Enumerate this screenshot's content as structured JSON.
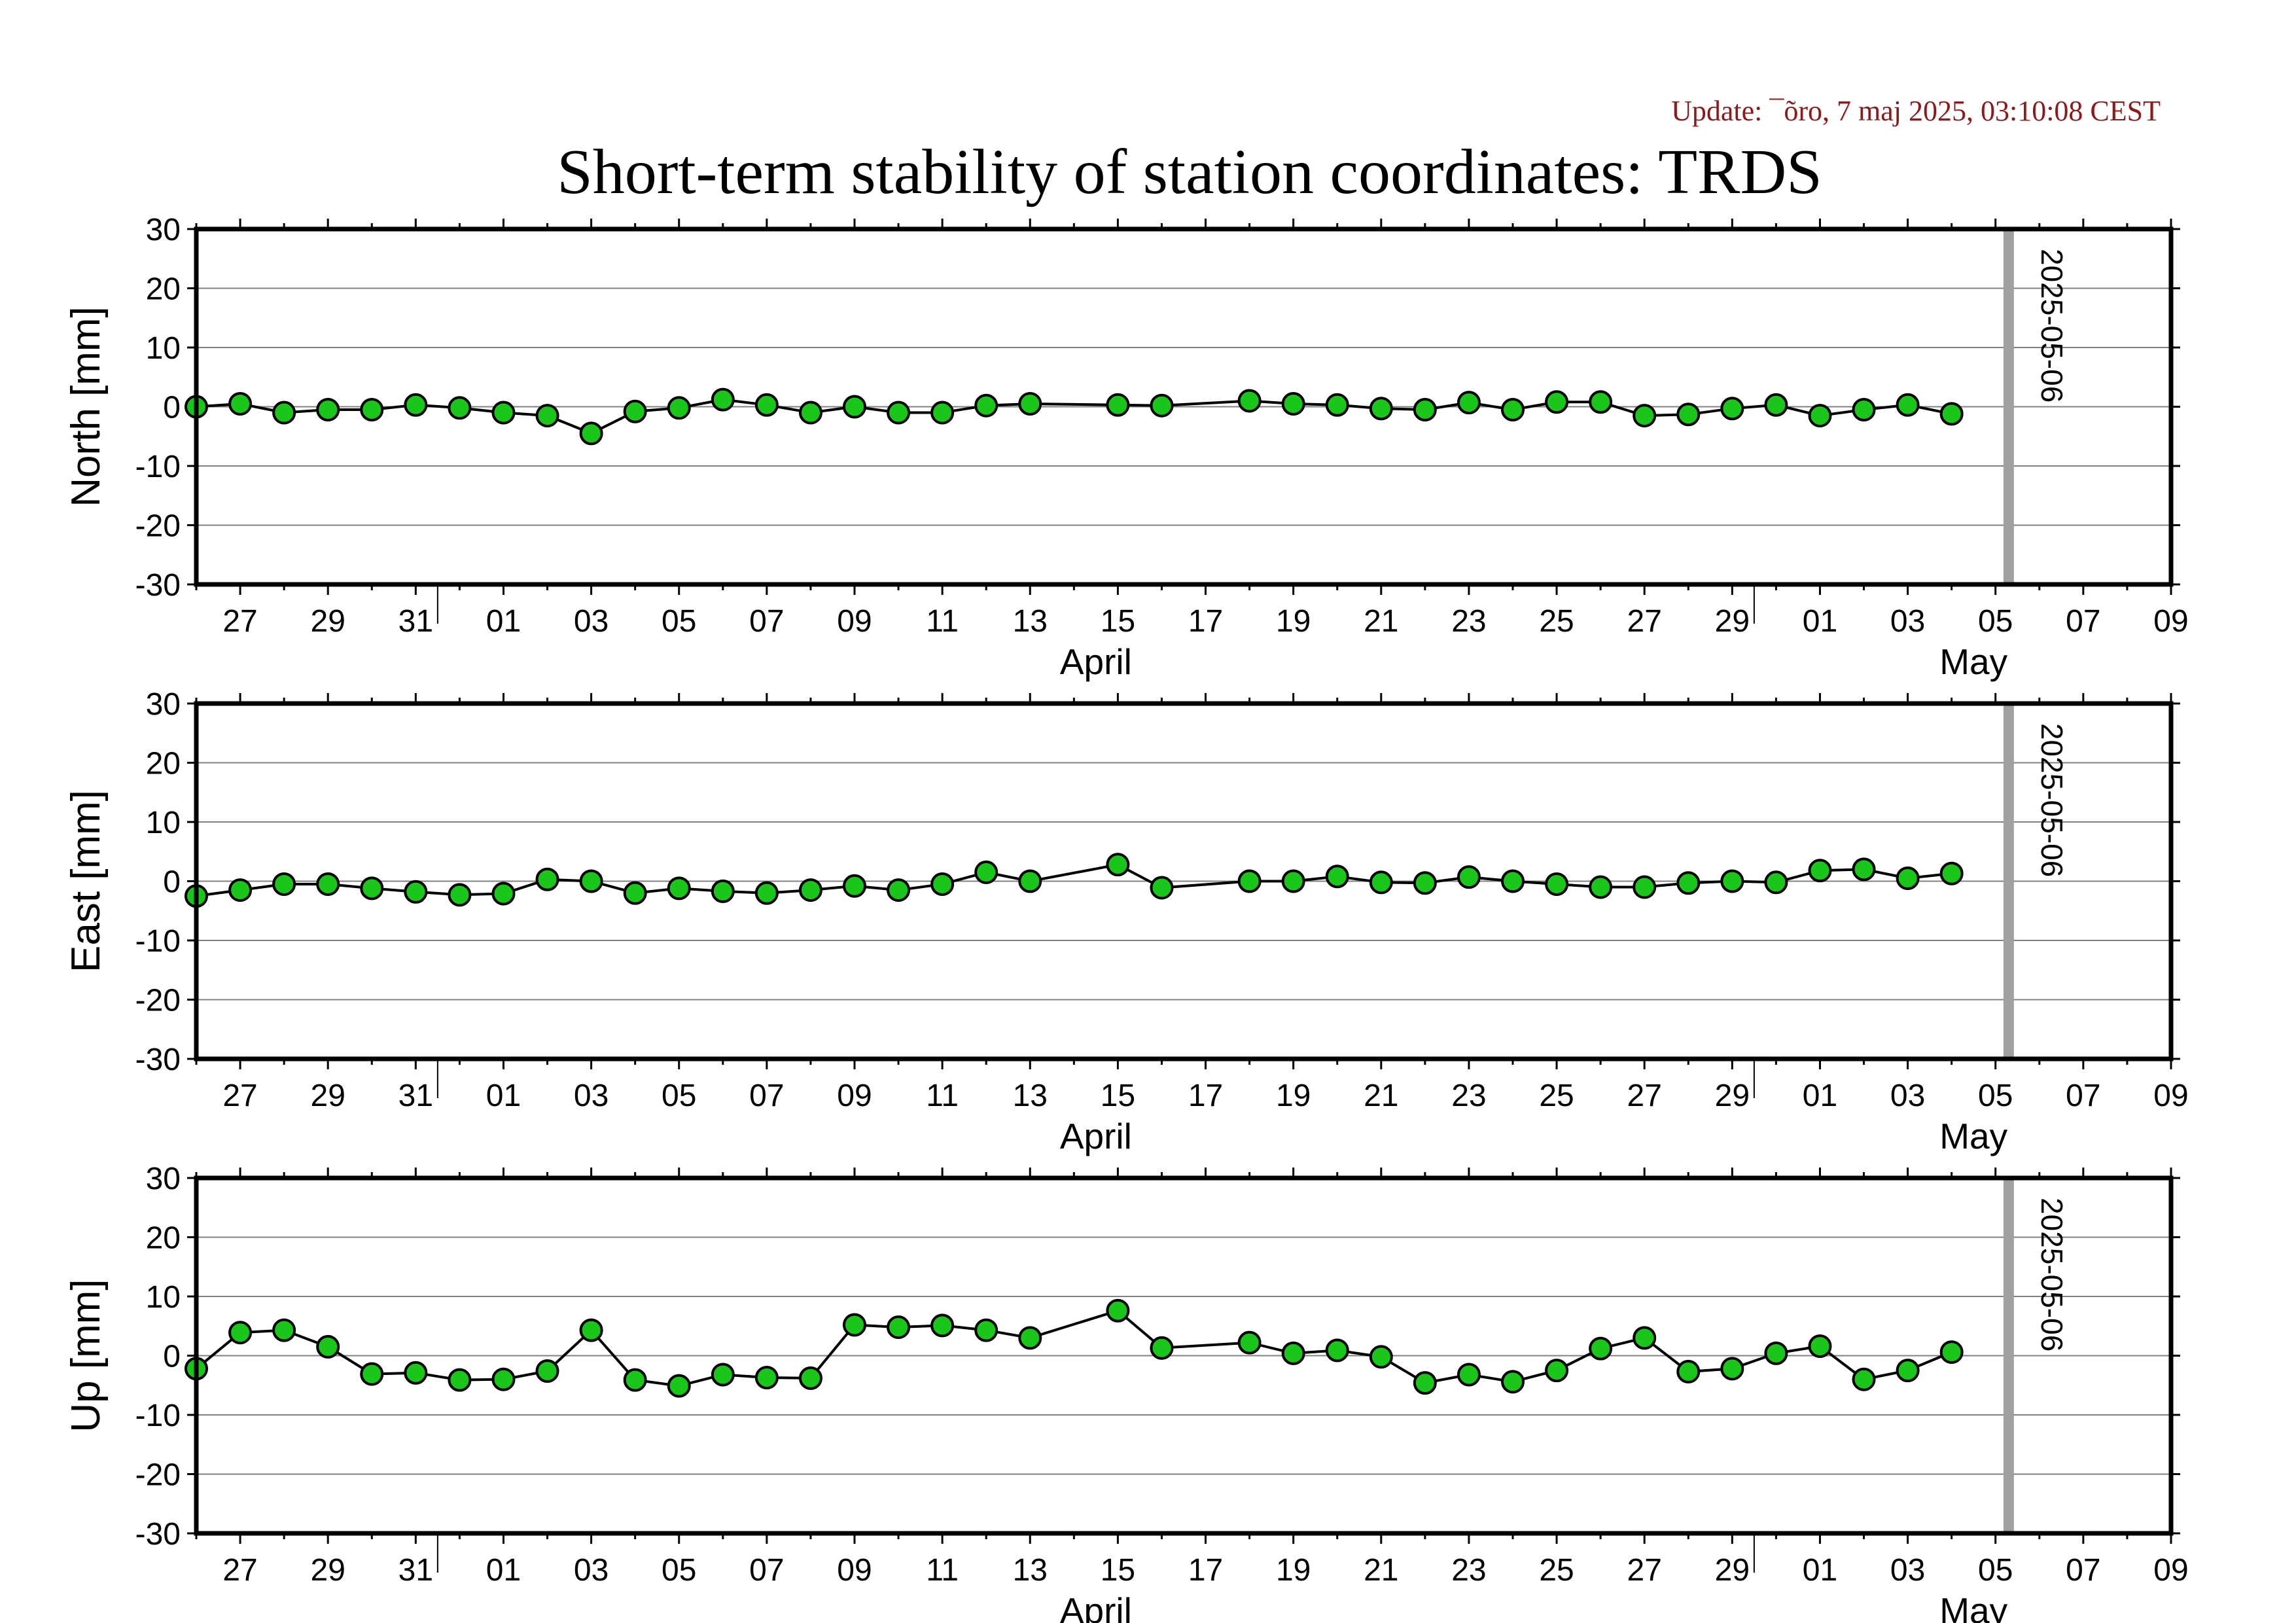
{
  "update_text": "Update: ¯õro, 7 maj 2025, 03:10:08 CEST",
  "title": "Short-term stability of station coordinates: TRDS",
  "colors": {
    "update": "#8b1a1a",
    "point_fill": "#19c619",
    "marker_line": "#a0a0a0",
    "grid": "#808080"
  },
  "chart_data": [
    {
      "type": "line",
      "panel": "north",
      "ylabel": "North [mm]",
      "ylim": [
        -30,
        30
      ],
      "yticks": [
        -30,
        -20,
        -10,
        0,
        10,
        20,
        30
      ],
      "grid": true,
      "xlim": [
        "2025-03-26",
        "2025-05-10"
      ],
      "xtick_labels": [
        "27",
        "29",
        "31",
        "01",
        "03",
        "05",
        "07",
        "09",
        "11",
        "13",
        "15",
        "17",
        "19",
        "21",
        "23",
        "25",
        "27",
        "29",
        "01",
        "03",
        "05",
        "07",
        "09"
      ],
      "month_labels": [
        "April",
        "May"
      ],
      "marker_line": {
        "x": "2025-05-06",
        "label": "2025-05-06"
      },
      "x": [
        "2025-03-26",
        "2025-03-27",
        "2025-03-28",
        "2025-03-29",
        "2025-03-30",
        "2025-03-31",
        "2025-04-01",
        "2025-04-02",
        "2025-04-03",
        "2025-04-04",
        "2025-04-05",
        "2025-04-06",
        "2025-04-07",
        "2025-04-08",
        "2025-04-09",
        "2025-04-10",
        "2025-04-11",
        "2025-04-12",
        "2025-04-13",
        "2025-04-14",
        "2025-04-16",
        "2025-04-17",
        "2025-04-19",
        "2025-04-20",
        "2025-04-21",
        "2025-04-22",
        "2025-04-23",
        "2025-04-24",
        "2025-04-25",
        "2025-04-26",
        "2025-04-27",
        "2025-04-28",
        "2025-04-29",
        "2025-04-30",
        "2025-05-01",
        "2025-05-02",
        "2025-05-03",
        "2025-05-04",
        "2025-05-05"
      ],
      "values": [
        0,
        0.5,
        -1,
        -0.5,
        -0.5,
        0.3,
        -0.2,
        -1,
        -1.5,
        -4.5,
        -0.8,
        -0.2,
        1.2,
        0.3,
        -1,
        0,
        -1,
        -1,
        0.2,
        0.5,
        0.3,
        0.2,
        1,
        0.5,
        0.3,
        -0.3,
        -0.5,
        0.7,
        -0.5,
        0.8,
        0.8,
        -1.5,
        -1.3,
        -0.3,
        0.3,
        -1.5,
        -0.5,
        0.3,
        -1.2
      ]
    },
    {
      "type": "line",
      "panel": "east",
      "ylabel": "East [mm]",
      "ylim": [
        -30,
        30
      ],
      "yticks": [
        -30,
        -20,
        -10,
        0,
        10,
        20,
        30
      ],
      "grid": true,
      "xlim": [
        "2025-03-26",
        "2025-05-10"
      ],
      "xtick_labels": [
        "27",
        "29",
        "31",
        "01",
        "03",
        "05",
        "07",
        "09",
        "11",
        "13",
        "15",
        "17",
        "19",
        "21",
        "23",
        "25",
        "27",
        "29",
        "01",
        "03",
        "05",
        "07",
        "09"
      ],
      "month_labels": [
        "April",
        "May"
      ],
      "marker_line": {
        "x": "2025-05-06",
        "label": "2025-05-06"
      },
      "x": [
        "2025-03-26",
        "2025-03-27",
        "2025-03-28",
        "2025-03-29",
        "2025-03-30",
        "2025-03-31",
        "2025-04-01",
        "2025-04-02",
        "2025-04-03",
        "2025-04-04",
        "2025-04-05",
        "2025-04-06",
        "2025-04-07",
        "2025-04-08",
        "2025-04-09",
        "2025-04-10",
        "2025-04-11",
        "2025-04-12",
        "2025-04-13",
        "2025-04-14",
        "2025-04-16",
        "2025-04-17",
        "2025-04-19",
        "2025-04-20",
        "2025-04-21",
        "2025-04-22",
        "2025-04-23",
        "2025-04-24",
        "2025-04-25",
        "2025-04-26",
        "2025-04-27",
        "2025-04-28",
        "2025-04-29",
        "2025-04-30",
        "2025-05-01",
        "2025-05-02",
        "2025-05-03",
        "2025-05-04",
        "2025-05-05"
      ],
      "values": [
        -2.5,
        -1.5,
        -0.5,
        -0.5,
        -1.2,
        -1.8,
        -2.3,
        -2.1,
        0.3,
        0,
        -2,
        -1.2,
        -1.7,
        -2,
        -1.5,
        -0.8,
        -1.5,
        -0.5,
        1.5,
        0,
        2.8,
        -1.1,
        0,
        0,
        0.8,
        -0.2,
        -0.3,
        0.7,
        0,
        -0.5,
        -1,
        -1,
        -0.3,
        0,
        -0.2,
        1.8,
        2,
        0.5,
        1.3
      ]
    },
    {
      "type": "line",
      "panel": "up",
      "ylabel": "Up [mm]",
      "ylim": [
        -30,
        30
      ],
      "yticks": [
        -30,
        -20,
        -10,
        0,
        10,
        20,
        30
      ],
      "grid": true,
      "xlim": [
        "2025-03-26",
        "2025-05-10"
      ],
      "xtick_labels": [
        "27",
        "29",
        "31",
        "01",
        "03",
        "05",
        "07",
        "09",
        "11",
        "13",
        "15",
        "17",
        "19",
        "21",
        "23",
        "25",
        "27",
        "29",
        "01",
        "03",
        "05",
        "07",
        "09"
      ],
      "month_labels": [
        "April",
        "May"
      ],
      "marker_line": {
        "x": "2025-05-06",
        "label": "2025-05-06"
      },
      "x": [
        "2025-03-26",
        "2025-03-27",
        "2025-03-28",
        "2025-03-29",
        "2025-03-30",
        "2025-03-31",
        "2025-04-01",
        "2025-04-02",
        "2025-04-03",
        "2025-04-04",
        "2025-04-05",
        "2025-04-06",
        "2025-04-07",
        "2025-04-08",
        "2025-04-09",
        "2025-04-10",
        "2025-04-11",
        "2025-04-12",
        "2025-04-13",
        "2025-04-14",
        "2025-04-16",
        "2025-04-17",
        "2025-04-19",
        "2025-04-20",
        "2025-04-21",
        "2025-04-22",
        "2025-04-23",
        "2025-04-24",
        "2025-04-25",
        "2025-04-26",
        "2025-04-27",
        "2025-04-28",
        "2025-04-29",
        "2025-04-30",
        "2025-05-01",
        "2025-05-02",
        "2025-05-03",
        "2025-05-04",
        "2025-05-05"
      ],
      "values": [
        -2.2,
        3.9,
        4.3,
        1.5,
        -3.1,
        -2.9,
        -4.1,
        -4,
        -2.6,
        4.3,
        -4.1,
        -5.1,
        -3.2,
        -3.7,
        -3.8,
        5.2,
        4.8,
        5.1,
        4.3,
        3,
        7.6,
        1.3,
        2.2,
        0.4,
        0.9,
        -0.2,
        -4.6,
        -3.2,
        -4.4,
        -2.5,
        1.2,
        3,
        -2.7,
        -2.2,
        0.4,
        1.6,
        -4,
        -2.5,
        0.6
      ]
    }
  ]
}
